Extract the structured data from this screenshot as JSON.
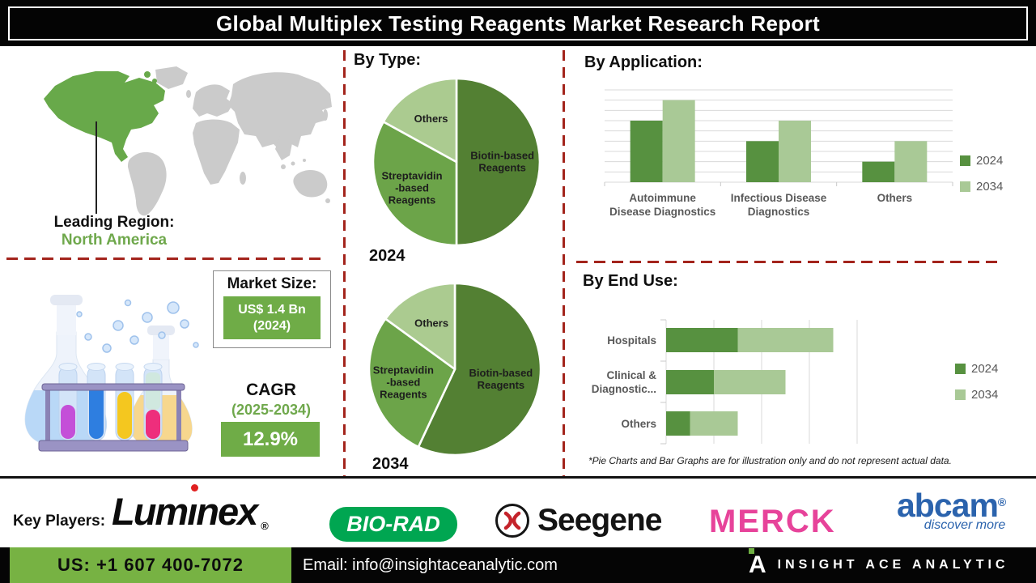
{
  "title": "Global Multiplex Testing Reagents Market Research Report",
  "sections": {
    "by_type": "By Type:",
    "by_application": "By Application:",
    "by_end_use": "By End Use:"
  },
  "leading_region": {
    "label": "Leading Region:",
    "value": "North America"
  },
  "market_size": {
    "label": "Market Size:",
    "value": "US$ 1.4 Bn",
    "year": "(2024)"
  },
  "cagr": {
    "label": "CAGR",
    "period": "(2025-2034)",
    "value": "12.9%"
  },
  "disclaimer": "*Pie Charts and Bar Graphs are for illustration only and do not represent actual data.",
  "key_players": {
    "label": "Key Players:",
    "luminex": {
      "pre": "Lum",
      "i": "ı",
      "post": "nex",
      "reg": "®"
    },
    "biorad": "BIO-RAD",
    "seegene": "Seegene",
    "merck": "MERCK",
    "abcam": {
      "name": "abcam",
      "reg": "®",
      "tagline": "discover more"
    }
  },
  "footer": {
    "phone": "US: +1 607 400-7072",
    "email": "Email: info@insightaceanalytic.com",
    "logo_letter": "A",
    "brand": "INSIGHT ACE ANALYTIC"
  },
  "colors": {
    "pie_dark_green": "#538033",
    "pie_mid_green": "#6ca449",
    "pie_light_green": "#abcb90",
    "bar_2024": "#579140",
    "bar_2034": "#a9c996",
    "accent_green": "#6fac47",
    "footer_green": "#77b243",
    "map_green": "#68a94a",
    "map_gray": "#cbcbcb",
    "dashed_red": "#a3241c",
    "biorad_green": "#00a651",
    "merck_pink": "#e7439a",
    "abcam_blue": "#2b63ad"
  },
  "chart_data": [
    {
      "type": "pie",
      "year": "2024",
      "title": "By Type — 2024",
      "labels": [
        "Biotin-based Reagents",
        "Streptavidin-based Reagents",
        "Others"
      ],
      "labels_lines": [
        [
          "Biotin-based",
          "Reagents"
        ],
        [
          "Streptavidin",
          "-based",
          "Reagents"
        ],
        [
          "Others"
        ]
      ],
      "values": [
        50,
        33,
        17
      ],
      "colors": [
        "#538033",
        "#6ca449",
        "#abcb90"
      ],
      "label_r": [
        0.55,
        0.62,
        0.6
      ],
      "note": "illustrative percentages"
    },
    {
      "type": "pie",
      "year": "2034",
      "title": "By Type — 2034",
      "labels": [
        "Biotin-based Reagents",
        "Streptavidin-based Reagents",
        "Others"
      ],
      "labels_lines": [
        [
          "Biotin-based",
          "Reagents"
        ],
        [
          "Streptavidin",
          "-based",
          "Reagents"
        ],
        [
          "Others"
        ]
      ],
      "values": [
        57,
        28,
        15
      ],
      "colors": [
        "#538033",
        "#6ca449",
        "#abcb90"
      ],
      "label_r": [
        0.55,
        0.62,
        0.6
      ],
      "note": "illustrative percentages"
    },
    {
      "type": "bar",
      "title": "By Application:",
      "categories": [
        "Autoimmune Disease Diagnostics",
        "Infectious Disease Diagnostics",
        "Others"
      ],
      "category_lines": [
        [
          "Autoimmune",
          "Disease Diagnostics"
        ],
        [
          "Infectious Disease",
          "Diagnostics"
        ],
        [
          "Others"
        ]
      ],
      "series": [
        {
          "name": "2024",
          "values": [
            6,
            4,
            2
          ]
        },
        {
          "name": "2034",
          "values": [
            8,
            6,
            4
          ]
        }
      ],
      "ylim": [
        0,
        9
      ],
      "grid": true,
      "legend_position": "right",
      "colors": [
        "#579140",
        "#a9c996"
      ],
      "note": "illustrative values read from unlabeled gridlines"
    },
    {
      "type": "bar-horizontal-stacked",
      "title": "By End Use:",
      "categories": [
        "Hospitals",
        "Clinical & Diagnostic...",
        "Others"
      ],
      "category_lines": [
        [
          "Hospitals"
        ],
        [
          "Clinical &",
          "Diagnostic..."
        ],
        [
          "Others"
        ]
      ],
      "series": [
        {
          "name": "2024",
          "values": [
            1.5,
            1.0,
            0.5
          ]
        },
        {
          "name": "2034",
          "values": [
            2.0,
            1.5,
            1.0
          ]
        }
      ],
      "xlim": [
        0,
        4
      ],
      "grid": true,
      "legend_position": "right",
      "colors": [
        "#579140",
        "#a9c996"
      ],
      "note": "illustrative values read from unlabeled gridlines"
    }
  ]
}
